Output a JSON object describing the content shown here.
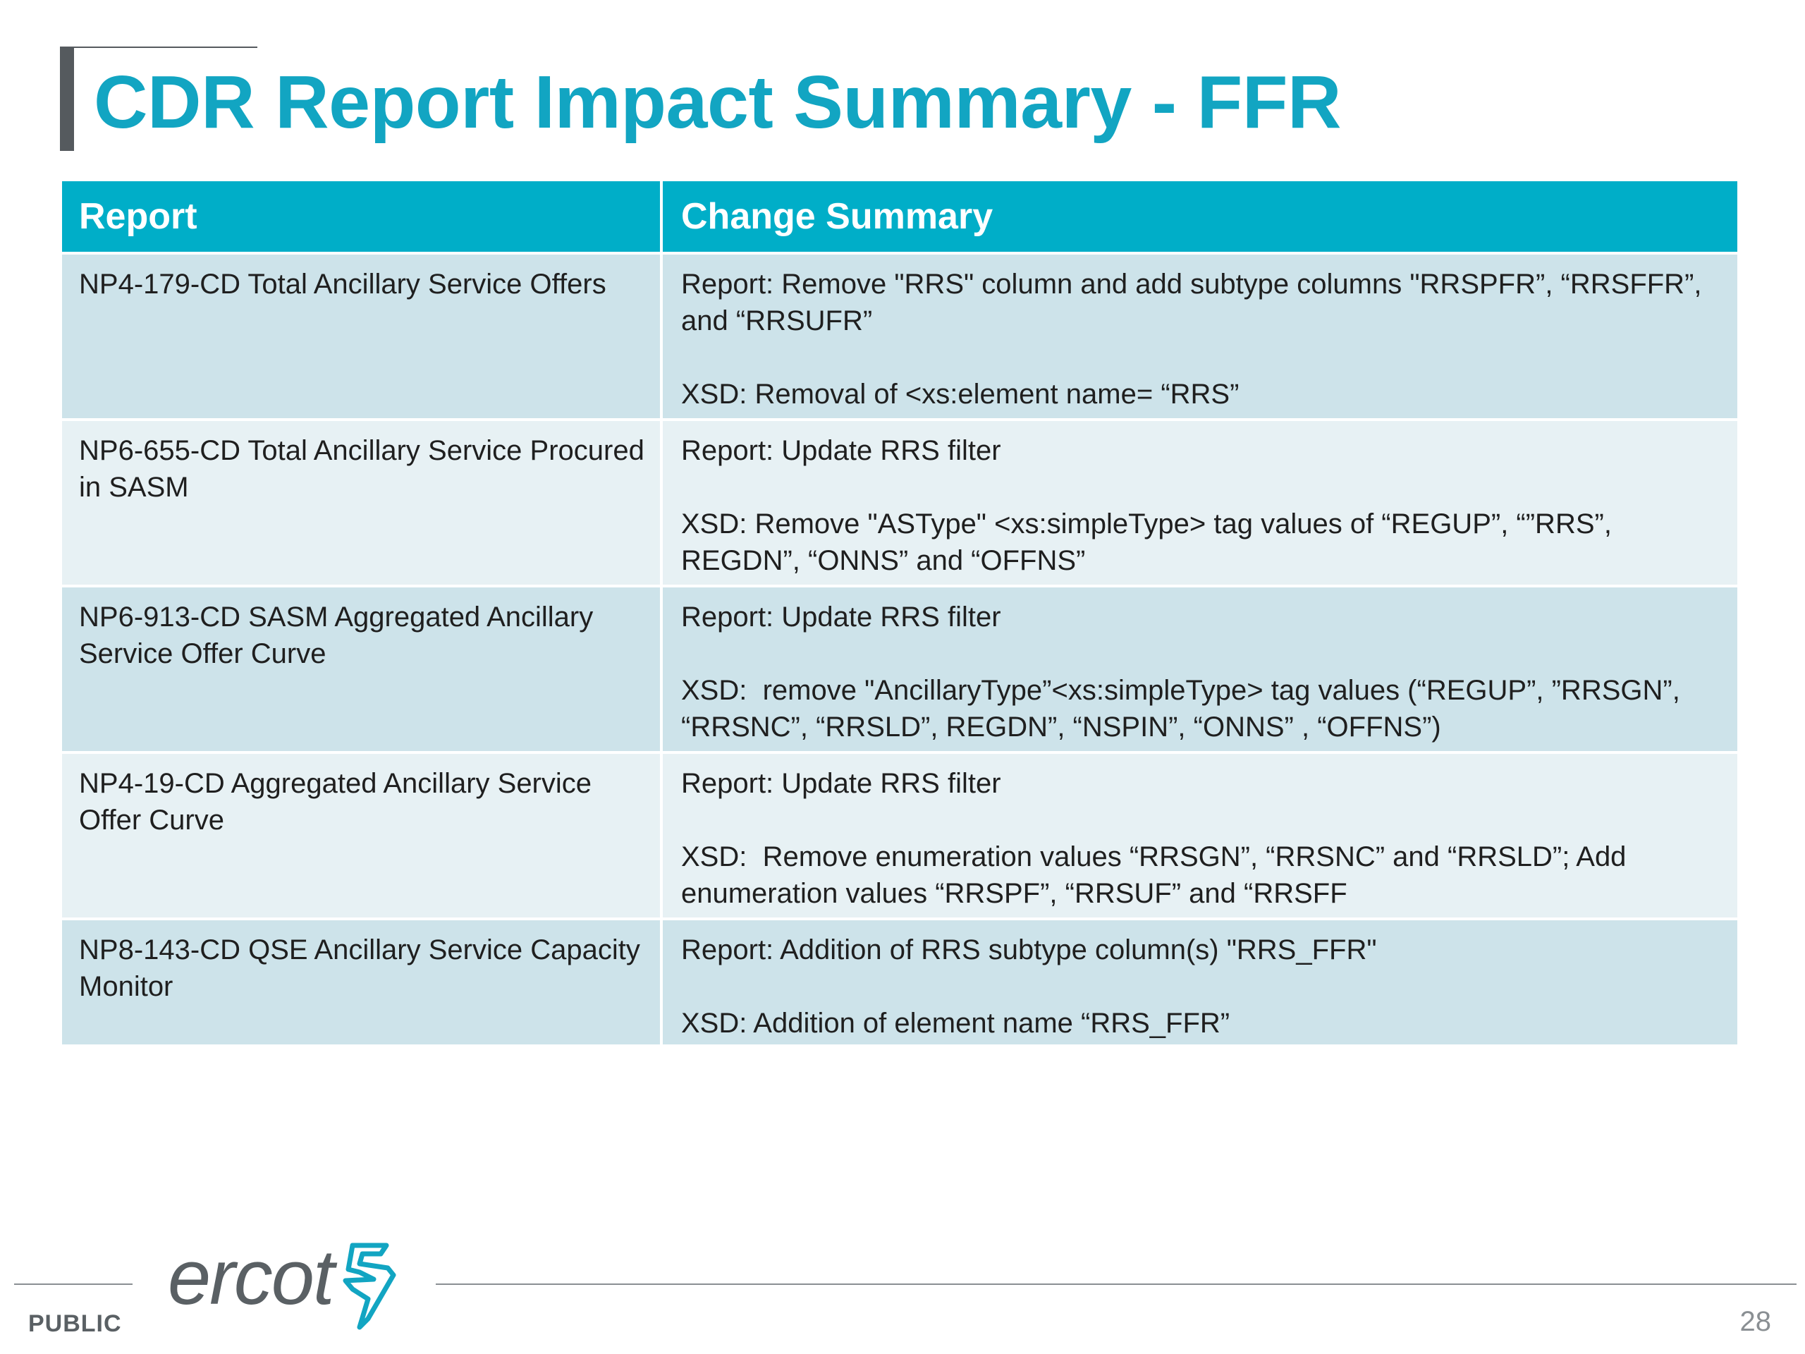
{
  "slide": {
    "title": "CDR Report Impact Summary - FFR",
    "page_number": "28",
    "classification": "PUBLIC",
    "logo_text": "ercot",
    "accent_color": "#12a5c2",
    "header_color": "#00aec8"
  },
  "table": {
    "headers": [
      "Report",
      "Change Summary"
    ],
    "rows": [
      {
        "report": "NP4-179-CD Total Ancillary Service Offers",
        "summary": [
          "Report: Remove \"RRS\" column and add subtype columns \"RRSPFR”, “RRSFFR”, and “RRSUFR”",
          "XSD: Removal of <xs:element name= “RRS”"
        ]
      },
      {
        "report": "NP6-655-CD Total Ancillary Service Procured in SASM",
        "summary": [
          "Report: Update RRS filter",
          "XSD: Remove \"ASType\" <xs:simpleType> tag values of “REGUP”, “”RRS”, REGDN”, “ONNS” and “OFFNS”"
        ]
      },
      {
        "report": "NP6-913-CD SASM Aggregated Ancillary Service Offer Curve",
        "summary": [
          "Report: Update RRS filter",
          "XSD:  remove \"AncillaryType”<xs:simpleType> tag values (“REGUP”, ”RRSGN”, “RRSNC”, “RRSLD”, REGDN”, “NSPIN”, “ONNS” , “OFFNS”)"
        ]
      },
      {
        "report": "NP4-19-CD Aggregated Ancillary Service Offer Curve",
        "summary": [
          "Report: Update RRS filter",
          "XSD:  Remove enumeration values “RRSGN”, “RRSNC” and “RRSLD”; Add enumeration values “RRSPF”, “RRSUF” and “RRSFF"
        ]
      },
      {
        "report": "NP8-143-CD QSE Ancillary Service Capacity Monitor",
        "summary": [
          "Report: Addition of RRS subtype column(s) \"RRS_FFR\"",
          "XSD: Addition of element name “RRS_FFR”"
        ]
      }
    ]
  }
}
